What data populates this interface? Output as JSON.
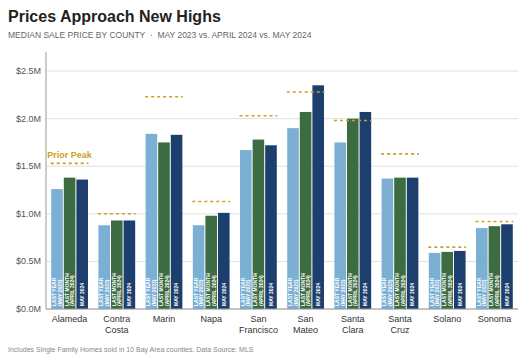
{
  "chart_data": {
    "type": "bar",
    "title": "Prices Approach New Highs",
    "subtitle": "MEDIAN SALE PRICE BY COUNTY  ·  MAY 2023 vs. APRIL 2024 vs. MAY 2024",
    "footnote": "Includes Single Family Homes sold in 10 Bay Area counties. Data Source: MLS",
    "categories": [
      "Alameda",
      "Contra\nCosta",
      "Marin",
      "Napa",
      "San\nFrancisco",
      "San\nMateo",
      "Santa\nClara",
      "Santa\nCruz",
      "Solano",
      "Sonoma"
    ],
    "series": [
      {
        "name": "LAST YEAR\n(MAY 2023)",
        "color": "#7bafd4",
        "values": [
          1.26,
          0.88,
          1.84,
          0.88,
          1.67,
          1.9,
          1.75,
          1.37,
          0.59,
          0.85
        ]
      },
      {
        "name": "LAST MONTH\n(APRIL 2024)",
        "color": "#3d6b42",
        "values": [
          1.38,
          0.93,
          1.75,
          0.98,
          1.78,
          2.07,
          2.0,
          1.38,
          0.6,
          0.87
        ]
      },
      {
        "name": "MAY 2024",
        "color": "#1c3f6e",
        "values": [
          1.36,
          0.93,
          1.83,
          1.01,
          1.72,
          2.35,
          2.07,
          1.38,
          0.61,
          0.89
        ]
      },
      {
        "name": "Prior Peak",
        "type": "hline",
        "line_style": "dashed",
        "color": "#c9a227",
        "values": [
          1.53,
          1.0,
          2.23,
          1.13,
          2.03,
          2.28,
          1.98,
          1.63,
          0.65,
          0.92
        ]
      }
    ],
    "ylim": [
      0,
      2.7
    ],
    "yticks": [
      {
        "value": 0.0,
        "label": "$0.0M"
      },
      {
        "value": 0.5,
        "label": "$0.5M"
      },
      {
        "value": 1.0,
        "label": "$1.0M"
      },
      {
        "value": 1.5,
        "label": "$1.5M"
      },
      {
        "value": 2.0,
        "label": "$2.0M"
      },
      {
        "value": 2.5,
        "label": "$2.5M"
      }
    ],
    "grid": true
  }
}
